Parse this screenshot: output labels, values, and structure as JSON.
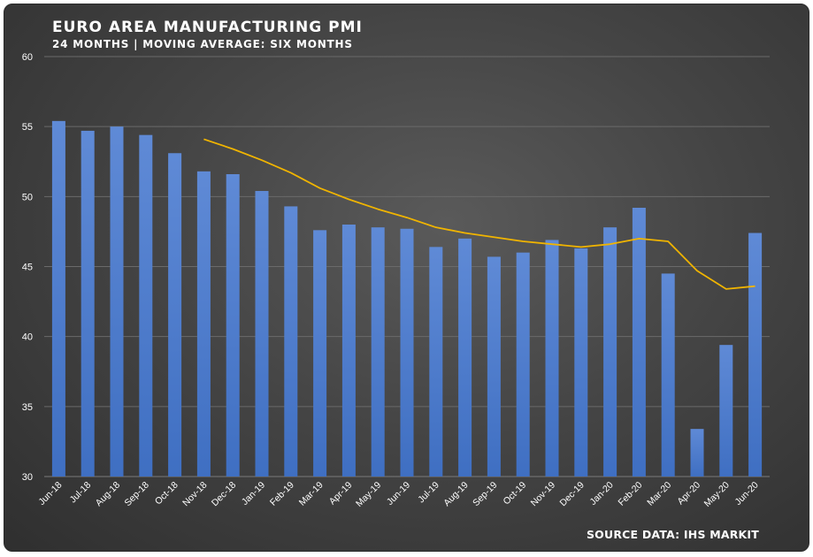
{
  "title": "EURO AREA MANUFACTURING PMI",
  "subtitle": "24 MONTHS | MOVING AVERAGE: SIX MONTHS",
  "source": "SOURCE DATA: IHS MARKIT",
  "colors": {
    "bar": "#4a78c8",
    "bar_top": "#5b85d2",
    "line": "#f0b400",
    "grid": "#6a6a6a",
    "text": "#ffffff"
  },
  "chart_data": {
    "type": "bar",
    "title": "EURO AREA MANUFACTURING PMI",
    "subtitle": "24 MONTHS | MOVING AVERAGE: SIX MONTHS",
    "xlabel": "",
    "ylabel": "",
    "ylim": [
      30,
      60
    ],
    "yticks": [
      30,
      35,
      40,
      45,
      50,
      55,
      60
    ],
    "grid": true,
    "legend": "none",
    "categories": [
      "Jun-18",
      "Jul-18",
      "Aug-18",
      "Sep-18",
      "Oct-18",
      "Nov-18",
      "Dec-18",
      "Jan-19",
      "Feb-19",
      "Mar-19",
      "Apr-19",
      "May-19",
      "Jun-19",
      "Jul-19",
      "Aug-19",
      "Sep-19",
      "Oct-19",
      "Nov-19",
      "Dec-19",
      "Jan-20",
      "Feb-20",
      "Mar-20",
      "Apr-20",
      "May-20",
      "Jun-20"
    ],
    "series": [
      {
        "type": "bar",
        "values": [
          55.4,
          54.7,
          55.0,
          54.4,
          53.1,
          51.8,
          51.6,
          50.4,
          49.3,
          47.6,
          48.0,
          47.8,
          47.7,
          46.4,
          47.0,
          45.7,
          46.0,
          46.9,
          46.3,
          47.8,
          49.2,
          44.5,
          33.4,
          39.4,
          47.4
        ]
      },
      {
        "type": "line",
        "values": [
          null,
          null,
          null,
          null,
          null,
          54.1,
          53.4,
          52.6,
          51.7,
          50.6,
          49.8,
          49.1,
          48.5,
          47.8,
          47.4,
          47.1,
          46.8,
          46.6,
          46.4,
          46.6,
          47.0,
          46.8,
          44.7,
          43.4,
          43.6
        ]
      }
    ]
  }
}
